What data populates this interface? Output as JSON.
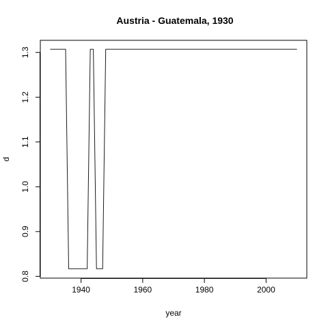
{
  "chart_data": {
    "type": "line",
    "title": "Austria - Guatemala, 1930",
    "xlabel": "year",
    "ylabel": "d",
    "xlim": [
      1926.8,
      2013.2
    ],
    "ylim": [
      0.796,
      1.327
    ],
    "xticks": [
      1940,
      1960,
      1980,
      2000
    ],
    "yticks": [
      0.8,
      0.9,
      1.0,
      1.1,
      1.2,
      1.3
    ],
    "ytick_labels": [
      "0.8",
      "0.9",
      "1.0",
      "1.1",
      "1.2",
      "1.3"
    ],
    "grid": false,
    "series": [
      {
        "color": "#1a1a1a",
        "x": [
          1930,
          1935,
          1936,
          1942,
          1943,
          1944,
          1945,
          1947,
          1948,
          2010
        ],
        "y": [
          1.307,
          1.307,
          0.817,
          0.817,
          1.307,
          1.307,
          0.817,
          0.817,
          1.307,
          1.307
        ]
      }
    ]
  }
}
